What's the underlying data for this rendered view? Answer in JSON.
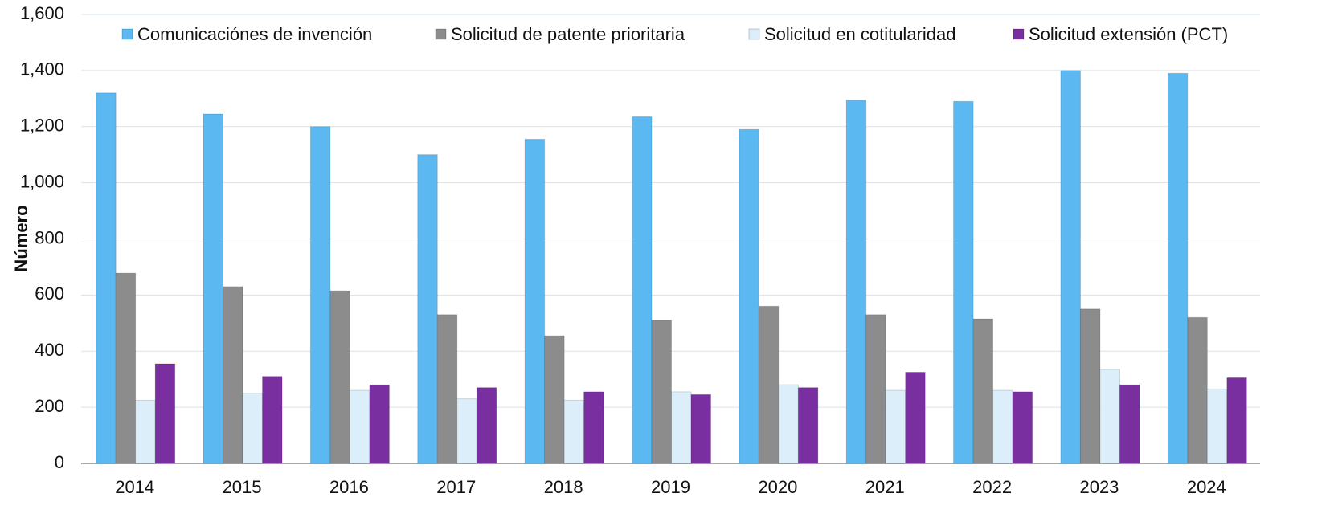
{
  "chart_data": {
    "type": "bar",
    "y_label": "Número",
    "categories": [
      "2014",
      "2015",
      "2016",
      "2017",
      "2018",
      "2019",
      "2020",
      "2021",
      "2022",
      "2023",
      "2024"
    ],
    "series": [
      {
        "name": "Comunicaciónes de invención",
        "color": "#5bb8f0",
        "values": [
          1320,
          1245,
          1200,
          1100,
          1155,
          1235,
          1190,
          1295,
          1290,
          1400,
          1390
        ]
      },
      {
        "name": "Solicitud de patente prioritaria",
        "color": "#8c8c8c",
        "values": [
          678,
          630,
          615,
          530,
          455,
          510,
          560,
          530,
          515,
          550,
          520
        ]
      },
      {
        "name": "Solicitud en cotitularidad",
        "color": "#dceefa",
        "values": [
          225,
          250,
          260,
          230,
          225,
          255,
          280,
          260,
          260,
          335,
          265
        ]
      },
      {
        "name": "Solicitud extensión (PCT)",
        "color": "#7a2fa0",
        "values": [
          355,
          310,
          280,
          270,
          255,
          245,
          270,
          325,
          255,
          280,
          305
        ]
      }
    ],
    "ylim": [
      0,
      1600
    ],
    "yticks": [
      0,
      200,
      400,
      600,
      800,
      {
        "value": 1000,
        "label": "1,000"
      },
      {
        "value": 1200,
        "label": "1,200"
      },
      {
        "value": 1400,
        "label": "1,400"
      },
      {
        "value": 1600,
        "label": "1,600"
      }
    ],
    "grid": true
  }
}
